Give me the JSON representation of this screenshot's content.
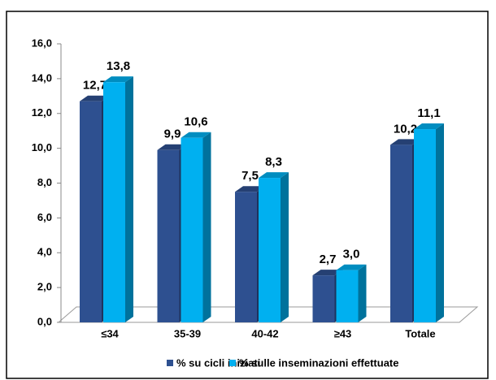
{
  "chart_data": {
    "type": "bar3d",
    "categories": [
      "≤34",
      "35-39",
      "40-42",
      "≥43",
      "Totale"
    ],
    "series": [
      {
        "name": "% su cicli iniziati",
        "color": "#2e5090",
        "values": [
          12.7,
          9.9,
          7.5,
          2.7,
          10.2
        ],
        "value_labels": [
          "12,7",
          "9,9",
          "7,5",
          "2,7",
          "10,2"
        ]
      },
      {
        "name": "% sulle inseminazioni effettuate",
        "color": "#00b0f0",
        "values": [
          13.8,
          10.6,
          8.3,
          3.0,
          11.1
        ],
        "value_labels": [
          "13,8",
          "10,6",
          "8,3",
          "3,0",
          "11,1"
        ]
      }
    ],
    "ylim": [
      0,
      16
    ],
    "yticks": [
      {
        "value": 0,
        "label": "0,0"
      },
      {
        "value": 2,
        "label": "2,0"
      },
      {
        "value": 4,
        "label": "4,0"
      },
      {
        "value": 6,
        "label": "6,0"
      },
      {
        "value": 8,
        "label": "8,0"
      },
      {
        "value": 10,
        "label": "10,0"
      },
      {
        "value": 12,
        "label": "12,0"
      },
      {
        "value": 14,
        "label": "14,0"
      },
      {
        "value": 16,
        "label": "16,0"
      }
    ]
  }
}
